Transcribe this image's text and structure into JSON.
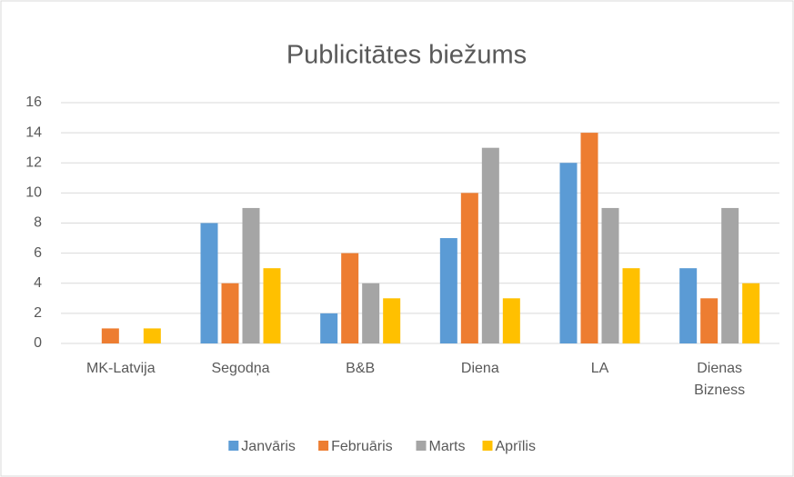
{
  "chart_data": {
    "type": "bar",
    "title": "Publicitātes biežums",
    "categories": [
      "MK-Latvija",
      "Segodņa",
      "B&B",
      "Diena",
      "LA",
      "Dienas Bizness"
    ],
    "series": [
      {
        "name": "Janvāris",
        "color": "#5b9bd5",
        "values": [
          0,
          8,
          2,
          7,
          12,
          5
        ]
      },
      {
        "name": "Februāris",
        "color": "#ed7d31",
        "values": [
          1,
          4,
          6,
          10,
          14,
          3
        ]
      },
      {
        "name": "Marts",
        "color": "#a5a5a5",
        "values": [
          0,
          9,
          4,
          13,
          9,
          9
        ]
      },
      {
        "name": "Aprīlis",
        "color": "#ffc000",
        "values": [
          1,
          5,
          3,
          3,
          5,
          4
        ]
      }
    ],
    "ylim": [
      0,
      16
    ],
    "yticks": [
      0,
      2,
      4,
      6,
      8,
      10,
      12,
      14,
      16
    ],
    "grid": true,
    "legend": "bottom"
  }
}
